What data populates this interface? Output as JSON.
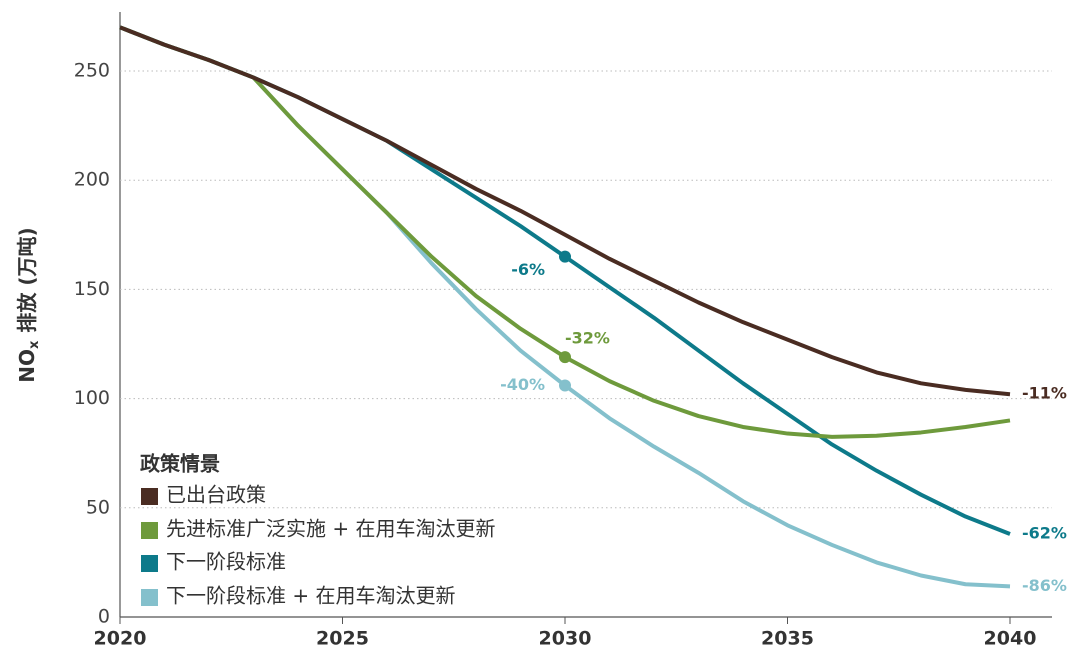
{
  "chart_data": {
    "type": "line",
    "ylabel_main": "NO",
    "ylabel_sub": "x",
    "ylabel_rest": "排放 (万吨)",
    "x": [
      2020,
      2021,
      2022,
      2023,
      2024,
      2025,
      2026,
      2027,
      2028,
      2029,
      2030,
      2031,
      2032,
      2033,
      2034,
      2035,
      2036,
      2037,
      2038,
      2039,
      2040
    ],
    "xlim": [
      2020,
      2040
    ],
    "xticks": [
      2020,
      2025,
      2030,
      2035,
      2040
    ],
    "ylim": [
      0,
      275
    ],
    "yticks": [
      0,
      50,
      100,
      150,
      200,
      250
    ],
    "grid": true,
    "legend_title": "政策情景",
    "legend": "lower left",
    "series": [
      {
        "name": "已出台政策",
        "color": "#4a2c22",
        "values": [
          270,
          262,
          255,
          247,
          238,
          228,
          218,
          207,
          196,
          186,
          175,
          164,
          154,
          144,
          135,
          127,
          119,
          112,
          107,
          104,
          102
        ],
        "annotations": [
          {
            "x": 2040,
            "label": "-11%"
          }
        ]
      },
      {
        "name": "先进标准广泛实施 + 在用车淘汰更新",
        "color": "#6e9a3c",
        "values": [
          270,
          262,
          255,
          247,
          225,
          205,
          185,
          165,
          147,
          132,
          119,
          108,
          99,
          92,
          87,
          84,
          82.5,
          83,
          84.5,
          87,
          90
        ],
        "annotations": [
          {
            "x": 2030,
            "label": "-32%"
          }
        ]
      },
      {
        "name": "下一阶段标准",
        "color": "#0d7a8a",
        "values": [
          270,
          262,
          255,
          247,
          238,
          228,
          218,
          205,
          192,
          179,
          165,
          151,
          137,
          122,
          107,
          93,
          79,
          67,
          56,
          46,
          38
        ],
        "annotations": [
          {
            "x": 2030,
            "label": "-6%"
          },
          {
            "x": 2040,
            "label": "-62%"
          }
        ]
      },
      {
        "name": "下一阶段标准 + 在用车淘汰更新",
        "color": "#84c0cc",
        "values": [
          270,
          262,
          255,
          247,
          225,
          205,
          185,
          162,
          141,
          122,
          106,
          91,
          78,
          66,
          53,
          42,
          33,
          25,
          19,
          15,
          14
        ],
        "annotations": [
          {
            "x": 2030,
            "label": "-40%"
          },
          {
            "x": 2040,
            "label": "-86%"
          }
        ]
      }
    ]
  }
}
